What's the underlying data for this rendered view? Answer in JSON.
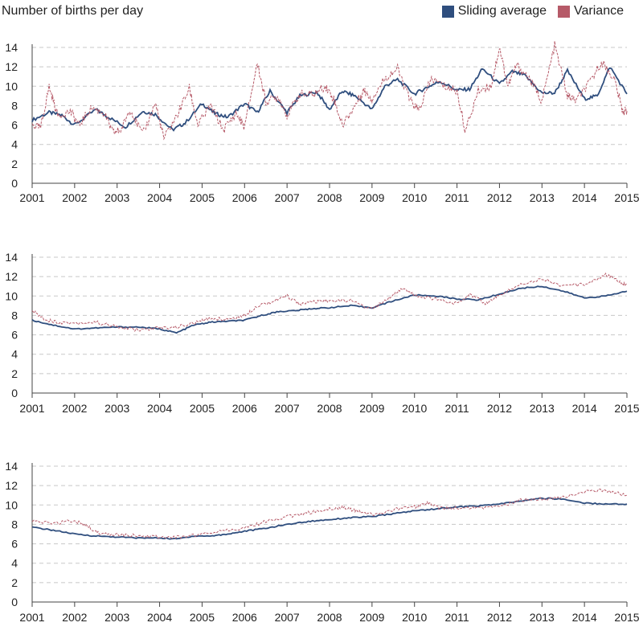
{
  "title": "Number of births per day",
  "legend": {
    "average_label": "Sliding average",
    "variance_label": "Variance",
    "average_color": "#2f4e7e",
    "variance_color": "#b65a68"
  },
  "chart_data": [
    {
      "type": "line",
      "ylim": [
        0,
        14
      ],
      "yticks": [
        0,
        2,
        4,
        6,
        8,
        10,
        12,
        14
      ],
      "xlim": [
        2001,
        2015
      ],
      "xticks": [
        "2001",
        "2002",
        "2003",
        "2004",
        "2005",
        "2006",
        "2007",
        "2008",
        "2009",
        "2010",
        "2011",
        "2012",
        "2013",
        "2014",
        "2015"
      ],
      "series": [
        {
          "name": "Sliding average",
          "x": [
            2001,
            2001.4,
            2001.7,
            2002,
            2002.5,
            2002.8,
            2003.2,
            2003.6,
            2003.9,
            2004.3,
            2004.6,
            2005,
            2005.3,
            2005.6,
            2006,
            2006.3,
            2006.6,
            2007,
            2007.3,
            2007.7,
            2008,
            2008.3,
            2008.6,
            2009,
            2009.3,
            2009.6,
            2010,
            2010.3,
            2010.6,
            2011,
            2011.3,
            2011.6,
            2012,
            2012.3,
            2012.6,
            2013,
            2013.3,
            2013.6,
            2014,
            2014.3,
            2014.6,
            2015
          ],
          "y": [
            6.5,
            7.3,
            7.0,
            6.0,
            7.6,
            6.8,
            5.8,
            7.4,
            7.1,
            5.5,
            6.2,
            8.2,
            7.2,
            6.8,
            8.2,
            7.3,
            9.5,
            7.3,
            9.0,
            9.4,
            7.6,
            9.5,
            9.0,
            7.6,
            10.0,
            10.7,
            9.2,
            9.9,
            10.5,
            9.6,
            9.7,
            11.8,
            10.2,
            11.5,
            11.1,
            9.3,
            9.3,
            11.6,
            8.7,
            9.0,
            12.0,
            9.2
          ]
        },
        {
          "name": "Variance",
          "x": [
            2001,
            2001.2,
            2001.4,
            2001.6,
            2001.9,
            2002.1,
            2002.4,
            2002.7,
            2002.9,
            2003.1,
            2003.3,
            2003.6,
            2003.9,
            2004.1,
            2004.4,
            2004.7,
            2004.9,
            2005.2,
            2005.5,
            2005.8,
            2006,
            2006.3,
            2006.5,
            2006.8,
            2007,
            2007.3,
            2007.6,
            2007.9,
            2008.1,
            2008.3,
            2008.6,
            2008.8,
            2009,
            2009.3,
            2009.6,
            2009.9,
            2010.1,
            2010.4,
            2010.7,
            2011,
            2011.2,
            2011.5,
            2011.8,
            2012,
            2012.2,
            2012.4,
            2012.7,
            2013,
            2013.3,
            2013.6,
            2013.8,
            2014.1,
            2014.4,
            2014.7,
            2014.9,
            2015
          ],
          "y": [
            6.0,
            5.7,
            10.0,
            7.0,
            7.4,
            6.0,
            7.8,
            7.2,
            5.2,
            5.5,
            7.7,
            5.0,
            8.3,
            4.6,
            6.9,
            9.8,
            6.0,
            8.0,
            5.5,
            7.2,
            5.8,
            12.4,
            8.4,
            8.9,
            7.0,
            9.2,
            9.1,
            10.0,
            8.7,
            6.0,
            8.0,
            9.6,
            8.7,
            10.8,
            11.8,
            8.5,
            7.5,
            10.8,
            10.0,
            9.5,
            5.3,
            9.6,
            10.0,
            14.0,
            10.0,
            12.2,
            10.8,
            8.5,
            14.2,
            9.0,
            8.5,
            10.2,
            12.5,
            10.8,
            7.4,
            7.5
          ]
        }
      ]
    },
    {
      "type": "line",
      "ylim": [
        0,
        14
      ],
      "yticks": [
        0,
        2,
        4,
        6,
        8,
        10,
        12,
        14
      ],
      "xlim": [
        2001,
        2015
      ],
      "xticks": [
        "2001",
        "2002",
        "2003",
        "2004",
        "2005",
        "2006",
        "2007",
        "2008",
        "2009",
        "2010",
        "2011",
        "2012",
        "2013",
        "2014",
        "2015"
      ],
      "series": [
        {
          "name": "Sliding average",
          "x": [
            2001,
            2001.5,
            2002,
            2002.5,
            2003,
            2003.5,
            2004,
            2004.4,
            2004.8,
            2005.2,
            2005.6,
            2006,
            2006.4,
            2006.8,
            2007.2,
            2007.6,
            2008,
            2008.5,
            2009,
            2009.5,
            2010,
            2010.5,
            2011,
            2011.5,
            2012,
            2012.5,
            2013,
            2013.5,
            2014,
            2014.5,
            2015
          ],
          "y": [
            7.5,
            7.0,
            6.6,
            6.7,
            6.8,
            6.8,
            6.6,
            6.2,
            7.0,
            7.3,
            7.4,
            7.5,
            8.0,
            8.4,
            8.5,
            8.7,
            8.8,
            9.0,
            8.8,
            9.5,
            10.1,
            10.0,
            9.7,
            9.6,
            10.2,
            10.8,
            11.0,
            10.5,
            9.8,
            10.0,
            10.5
          ]
        },
        {
          "name": "Variance",
          "x": [
            2001,
            2001.3,
            2001.6,
            2002,
            2002.5,
            2003,
            2003.5,
            2004,
            2004.4,
            2004.8,
            2005.2,
            2005.6,
            2006,
            2006.3,
            2006.7,
            2007,
            2007.3,
            2007.7,
            2008,
            2008.5,
            2009,
            2009.4,
            2009.7,
            2010,
            2010.5,
            2011,
            2011.3,
            2011.7,
            2012,
            2012.5,
            2013,
            2013.5,
            2014,
            2014.5,
            2014.8,
            2015
          ],
          "y": [
            8.5,
            7.6,
            7.3,
            7.2,
            7.3,
            6.8,
            6.5,
            6.7,
            6.8,
            7.2,
            7.7,
            7.6,
            8.0,
            9.0,
            9.5,
            10.0,
            9.2,
            9.4,
            9.5,
            9.5,
            8.6,
            9.8,
            10.8,
            10.1,
            9.7,
            9.2,
            10.2,
            9.2,
            10.1,
            11.2,
            11.8,
            11.0,
            11.2,
            12.2,
            11.6,
            11.1
          ]
        }
      ]
    },
    {
      "type": "line",
      "ylim": [
        0,
        14
      ],
      "yticks": [
        0,
        2,
        4,
        6,
        8,
        10,
        12,
        14
      ],
      "xlim": [
        2001,
        2015
      ],
      "xticks": [
        "2001",
        "2002",
        "2003",
        "2004",
        "2005",
        "2006",
        "2007",
        "2008",
        "2009",
        "2010",
        "2011",
        "2012",
        "2013",
        "2014",
        "2015"
      ],
      "series": [
        {
          "name": "Sliding average",
          "x": [
            2001,
            2001.5,
            2002,
            2002.5,
            2003,
            2003.5,
            2004,
            2004.4,
            2004.8,
            2005.2,
            2005.6,
            2006,
            2006.5,
            2007,
            2007.5,
            2008,
            2008.5,
            2009,
            2009.5,
            2010,
            2010.5,
            2011,
            2011.5,
            2012,
            2012.5,
            2013,
            2013.5,
            2014,
            2014.5,
            2015
          ],
          "y": [
            7.7,
            7.4,
            7.0,
            6.8,
            6.7,
            6.6,
            6.6,
            6.5,
            6.8,
            6.8,
            7.0,
            7.3,
            7.6,
            8.0,
            8.3,
            8.5,
            8.7,
            8.8,
            9.1,
            9.4,
            9.6,
            9.8,
            9.9,
            10.1,
            10.4,
            10.7,
            10.6,
            10.2,
            10.1,
            10.1
          ]
        },
        {
          "name": "Variance",
          "x": [
            2001,
            2001.5,
            2002,
            2002.3,
            2002.6,
            2003,
            2003.5,
            2004,
            2004.5,
            2005,
            2005.5,
            2006,
            2006.5,
            2007,
            2007.5,
            2008,
            2008.3,
            2008.6,
            2009,
            2009.5,
            2010,
            2010.3,
            2010.6,
            2011,
            2011.5,
            2012,
            2012.5,
            2013,
            2013.5,
            2014,
            2014.5,
            2015
          ],
          "y": [
            8.3,
            8.1,
            8.4,
            7.8,
            7.0,
            7.0,
            6.8,
            6.7,
            6.7,
            7.0,
            7.4,
            7.6,
            8.3,
            8.8,
            9.2,
            9.6,
            9.8,
            9.4,
            9.0,
            9.5,
            9.8,
            10.2,
            9.7,
            9.7,
            9.7,
            9.8,
            10.5,
            10.6,
            10.8,
            11.4,
            11.5,
            11.0
          ]
        }
      ]
    }
  ]
}
